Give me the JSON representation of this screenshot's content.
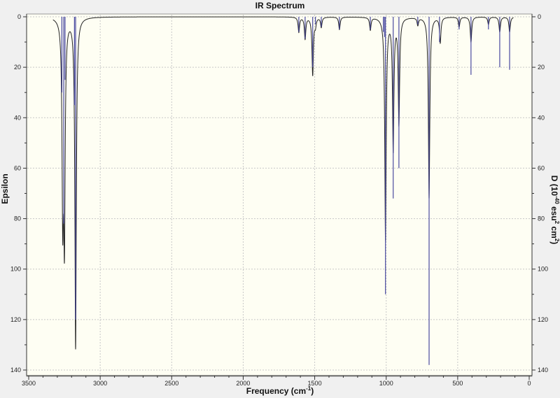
{
  "chart_data": {
    "type": "line",
    "title": "IR Spectrum",
    "xlabel": {
      "main": "Frequency (cm",
      "sup": "-1",
      "end": ")"
    },
    "ylabel_left": "Epsilon",
    "ylabel_right": {
      "p1": "D (10",
      "s1": "-40",
      "p2": " esu",
      "s2": "2",
      "p3": " cm",
      "s3": "2",
      "p4": ")"
    },
    "xlim": [
      3500,
      0
    ],
    "ylim": [
      0,
      140
    ],
    "y_inverted": true,
    "grid": true,
    "x_ticks": [
      "3500",
      "3000",
      "2500",
      "2000",
      "1500",
      "1000",
      "500",
      "0"
    ],
    "y_ticks": [
      "0",
      "20",
      "40",
      "60",
      "80",
      "100",
      "120",
      "140"
    ],
    "colors": {
      "plot_bg": "#fefef3",
      "spectrum": "#222222",
      "sticks": "#4a4aa0",
      "grid": "#c8c8c8"
    },
    "series": [
      {
        "kind": "spectrum",
        "peaks": [
          [
            3262,
            73
          ],
          [
            3250,
            82
          ],
          [
            3172,
            131
          ],
          [
            1611,
            6
          ],
          [
            1567,
            8.6
          ],
          [
            1514,
            23
          ],
          [
            1495,
            3
          ],
          [
            1454,
            4
          ],
          [
            1327,
            5
          ],
          [
            1111,
            5
          ],
          [
            1005,
            88
          ],
          [
            951,
            52
          ],
          [
            911,
            42
          ],
          [
            779,
            3
          ],
          [
            700,
            72
          ],
          [
            622,
            10
          ],
          [
            490,
            4
          ],
          [
            407,
            10
          ],
          [
            285,
            3
          ],
          [
            206,
            6
          ],
          [
            137,
            6
          ]
        ]
      },
      {
        "kind": "sticks",
        "values": [
          [
            3268,
            30
          ],
          [
            3255,
            82
          ],
          [
            3246,
            25
          ],
          [
            3180,
            35
          ],
          [
            3172,
            120
          ],
          [
            1611,
            6
          ],
          [
            1567,
            8.6
          ],
          [
            1514,
            20
          ],
          [
            1495,
            3
          ],
          [
            1454,
            4
          ],
          [
            1327,
            5
          ],
          [
            1111,
            5
          ],
          [
            1020,
            6
          ],
          [
            1012,
            8
          ],
          [
            1005,
            110
          ],
          [
            951,
            72
          ],
          [
            911,
            60
          ],
          [
            779,
            3
          ],
          [
            700,
            138
          ],
          [
            627,
            10
          ],
          [
            490,
            5
          ],
          [
            407,
            23
          ],
          [
            285,
            5
          ],
          [
            206,
            20
          ],
          [
            137,
            21
          ]
        ]
      }
    ]
  }
}
